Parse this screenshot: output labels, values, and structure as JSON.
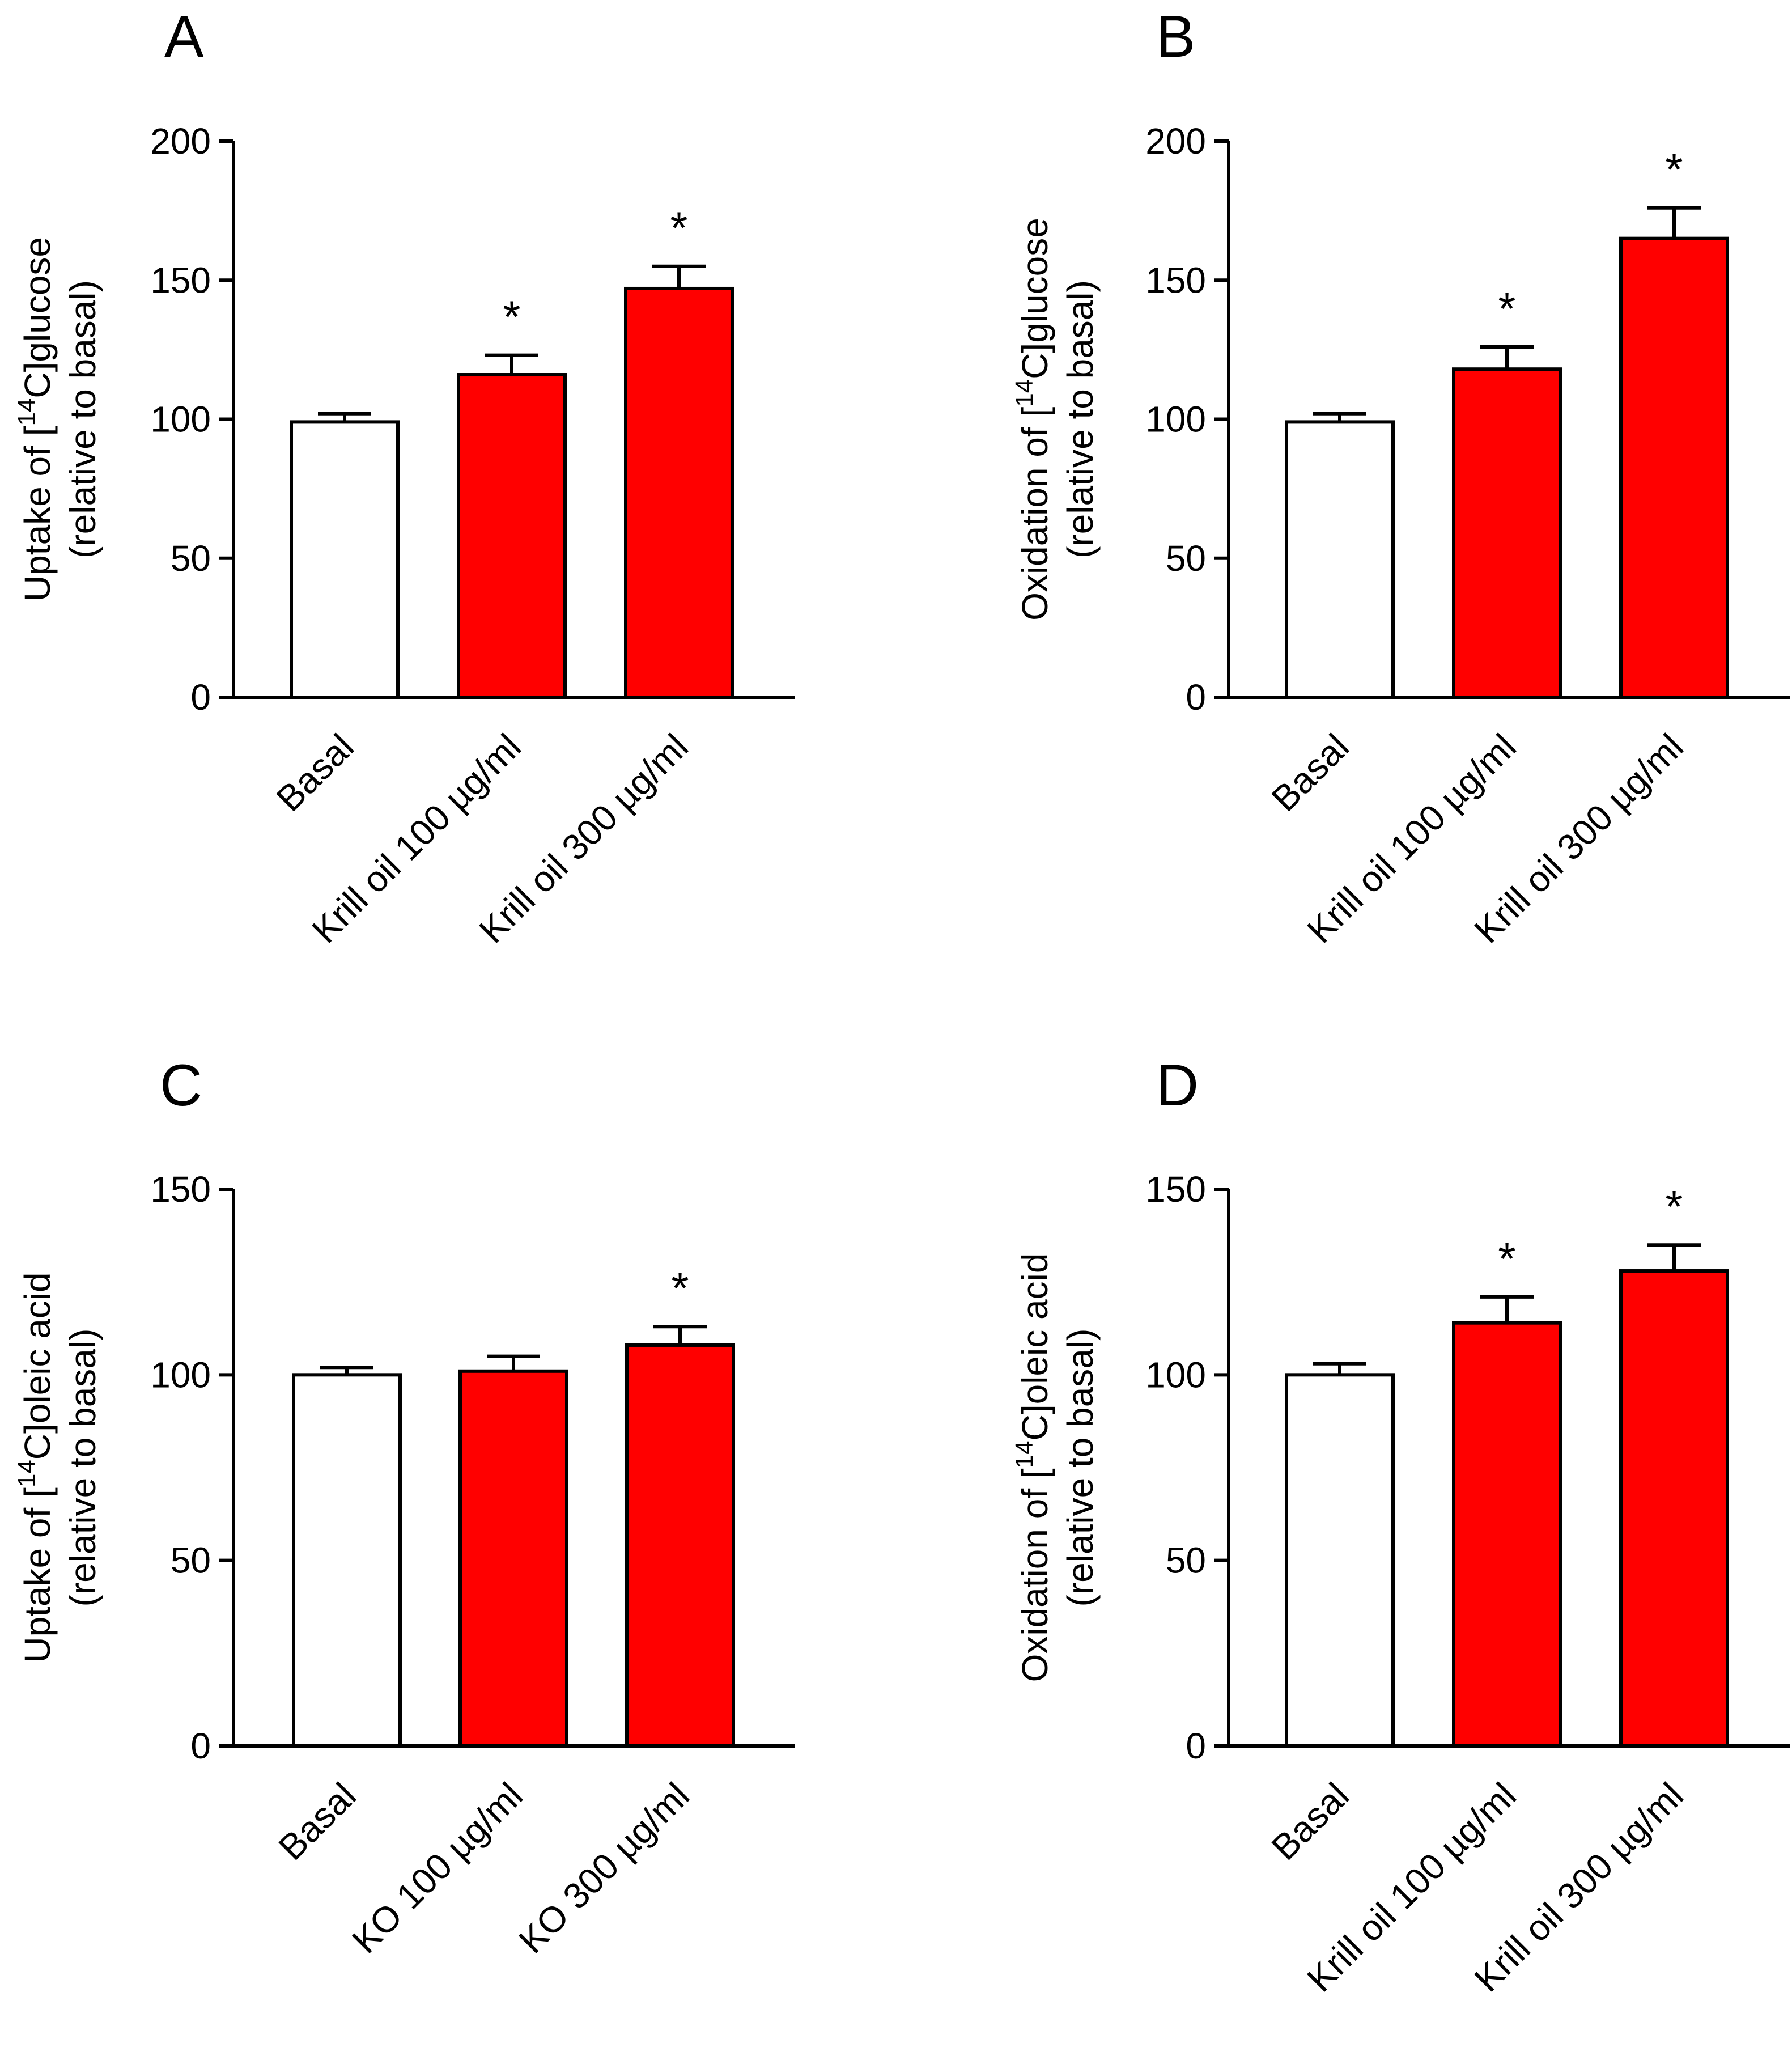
{
  "figure": {
    "description_free": true
  },
  "colors": {
    "treated": "#ff0000",
    "control": "#ffffff",
    "stroke": "#000000"
  },
  "chart_data": [
    {
      "panel": "A",
      "type": "bar",
      "categories": [
        "Basal",
        "Krill oil 100 µg/ml",
        "Krill oil 300 µg/ml"
      ],
      "values": [
        99,
        116,
        147
      ],
      "errors": [
        3,
        7,
        8
      ],
      "significant": [
        false,
        true,
        true
      ],
      "significance_marker": "*",
      "ylabel_line1": {
        "pre": "Uptake of [",
        "sup": "14",
        "post": "C]glucose"
      },
      "ylabel_line2": "(relative to basal)",
      "ylim": [
        0,
        200
      ],
      "yticks": [
        0,
        50,
        100,
        150,
        200
      ]
    },
    {
      "panel": "B",
      "type": "bar",
      "categories": [
        "Basal",
        "Krill oil 100 µg/ml",
        "Krill oil 300 µg/ml"
      ],
      "values": [
        99,
        118,
        165
      ],
      "errors": [
        3,
        8,
        11
      ],
      "significant": [
        false,
        true,
        true
      ],
      "significance_marker": "*",
      "ylabel_line1": {
        "pre": "Oxidation of [",
        "sup": "14",
        "post": "C]glucose"
      },
      "ylabel_line2": "(relative to basal)",
      "ylim": [
        0,
        200
      ],
      "yticks": [
        0,
        50,
        100,
        150,
        200
      ]
    },
    {
      "panel": "C",
      "type": "bar",
      "categories": [
        "Basal",
        "KO 100 µg/ml",
        "KO 300 µg/ml"
      ],
      "values": [
        100,
        101,
        108
      ],
      "errors": [
        2,
        4,
        5
      ],
      "significant": [
        false,
        false,
        true
      ],
      "significance_marker": "*",
      "ylabel_line1": {
        "pre": "Uptake of [",
        "sup": "14",
        "post": "C]oleic acid"
      },
      "ylabel_line2": "(relative to basal)",
      "ylim": [
        0,
        150
      ],
      "yticks": [
        0,
        50,
        100,
        150
      ]
    },
    {
      "panel": "D",
      "type": "bar",
      "categories": [
        "Basal",
        "Krill oil 100 µg/ml",
        "Krill oil 300 µg/ml"
      ],
      "values": [
        100,
        114,
        128
      ],
      "errors": [
        3,
        7,
        7
      ],
      "significant": [
        false,
        true,
        true
      ],
      "significance_marker": "*",
      "ylabel_line1": {
        "pre": "Oxidation of [",
        "sup": "14",
        "post": "C]oleic acid"
      },
      "ylabel_line2": "(relative to basal)",
      "ylim": [
        0,
        150
      ],
      "yticks": [
        0,
        50,
        100,
        150
      ]
    }
  ]
}
